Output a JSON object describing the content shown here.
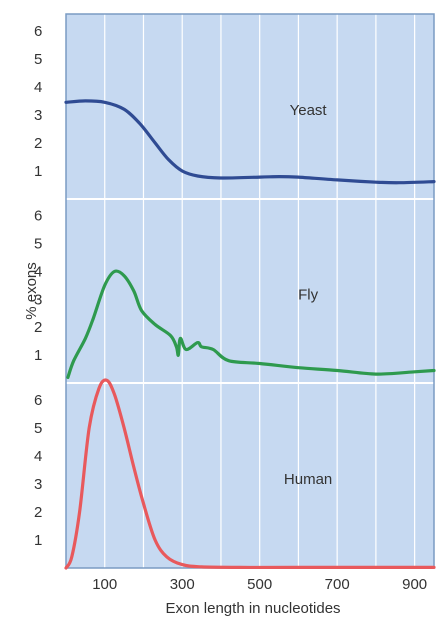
{
  "chart_data": {
    "type": "line",
    "xlabel": "Exon length in nucleotides",
    "ylabel": "% exons",
    "x_ticks": [
      100,
      300,
      500,
      700,
      900
    ],
    "xlim": [
      0,
      950
    ],
    "grid": true,
    "colors": {
      "background": "#c6d9f1",
      "frame": "#7a9bc3",
      "grid": "#ffffff"
    },
    "panels": [
      {
        "label": "Yeast",
        "color": "#2f4b93",
        "ylim": [
          0,
          6.6
        ],
        "y_ticks": [
          1,
          2,
          3,
          4,
          5,
          6
        ],
        "points": [
          [
            0,
            3.45
          ],
          [
            50,
            3.5
          ],
          [
            100,
            3.45
          ],
          [
            150,
            3.2
          ],
          [
            190,
            2.7
          ],
          [
            230,
            2.0
          ],
          [
            265,
            1.4
          ],
          [
            300,
            1.0
          ],
          [
            340,
            0.82
          ],
          [
            400,
            0.75
          ],
          [
            500,
            0.78
          ],
          [
            550,
            0.8
          ],
          [
            600,
            0.78
          ],
          [
            700,
            0.68
          ],
          [
            800,
            0.6
          ],
          [
            860,
            0.58
          ],
          [
            950,
            0.62
          ]
        ]
      },
      {
        "label": "Fly",
        "color": "#2e9a4e",
        "ylim": [
          0,
          6.6
        ],
        "y_ticks": [
          1,
          2,
          3,
          4,
          5,
          6
        ],
        "points": [
          [
            5,
            0.2
          ],
          [
            20,
            0.8
          ],
          [
            50,
            1.6
          ],
          [
            70,
            2.3
          ],
          [
            100,
            3.5
          ],
          [
            125,
            4.0
          ],
          [
            150,
            3.85
          ],
          [
            175,
            3.3
          ],
          [
            195,
            2.6
          ],
          [
            230,
            2.1
          ],
          [
            270,
            1.7
          ],
          [
            285,
            1.3
          ],
          [
            290,
            1.0
          ],
          [
            295,
            1.6
          ],
          [
            310,
            1.2
          ],
          [
            340,
            1.45
          ],
          [
            350,
            1.3
          ],
          [
            380,
            1.2
          ],
          [
            420,
            0.8
          ],
          [
            500,
            0.7
          ],
          [
            600,
            0.55
          ],
          [
            700,
            0.45
          ],
          [
            800,
            0.32
          ],
          [
            900,
            0.4
          ],
          [
            950,
            0.45
          ]
        ]
      },
      {
        "label": "Human",
        "color": "#e8595c",
        "ylim": [
          0,
          6.6
        ],
        "y_ticks": [
          1,
          2,
          3,
          4,
          5,
          6
        ],
        "points": [
          [
            0,
            0
          ],
          [
            15,
            0.4
          ],
          [
            35,
            2.0
          ],
          [
            60,
            5.0
          ],
          [
            85,
            6.4
          ],
          [
            105,
            6.7
          ],
          [
            125,
            6.2
          ],
          [
            150,
            5.0
          ],
          [
            175,
            3.6
          ],
          [
            200,
            2.3
          ],
          [
            230,
            1.0
          ],
          [
            260,
            0.4
          ],
          [
            300,
            0.12
          ],
          [
            350,
            0.04
          ],
          [
            450,
            0.02
          ],
          [
            600,
            0.02
          ],
          [
            950,
            0.02
          ]
        ]
      }
    ]
  }
}
